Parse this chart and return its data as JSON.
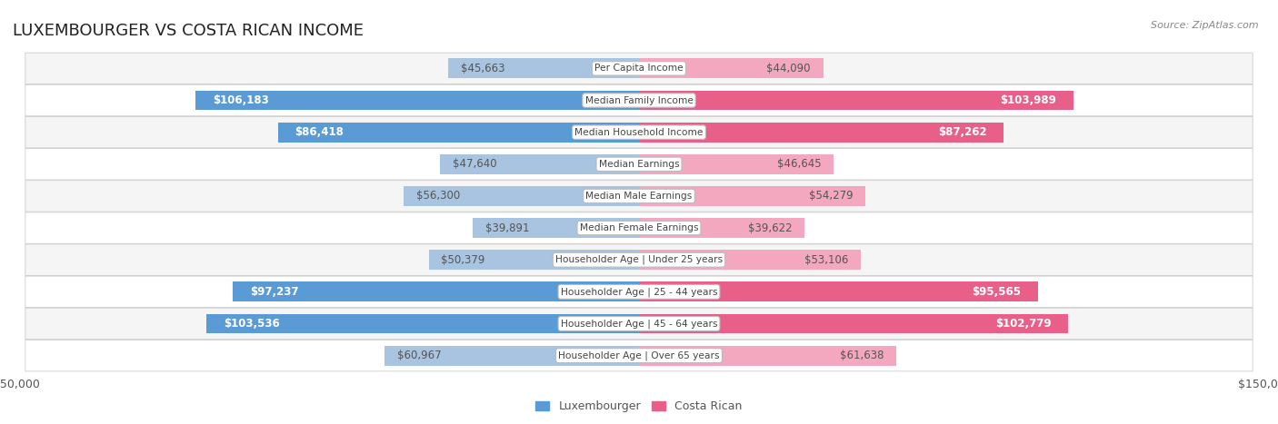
{
  "title": "LUXEMBOURGER VS COSTA RICAN INCOME",
  "source": "Source: ZipAtlas.com",
  "categories": [
    "Per Capita Income",
    "Median Family Income",
    "Median Household Income",
    "Median Earnings",
    "Median Male Earnings",
    "Median Female Earnings",
    "Householder Age | Under 25 years",
    "Householder Age | 25 - 44 years",
    "Householder Age | 45 - 64 years",
    "Householder Age | Over 65 years"
  ],
  "luxembourger_values": [
    45663,
    106183,
    86418,
    47640,
    56300,
    39891,
    50379,
    97237,
    103536,
    60967
  ],
  "costa_rican_values": [
    44090,
    103989,
    87262,
    46645,
    54279,
    39622,
    53106,
    95565,
    102779,
    61638
  ],
  "luxembourger_labels": [
    "$45,663",
    "$106,183",
    "$86,418",
    "$47,640",
    "$56,300",
    "$39,891",
    "$50,379",
    "$97,237",
    "$103,536",
    "$60,967"
  ],
  "costa_rican_labels": [
    "$44,090",
    "$103,989",
    "$87,262",
    "$46,645",
    "$54,279",
    "$39,622",
    "$53,106",
    "$95,565",
    "$102,779",
    "$61,638"
  ],
  "max_value": 150000,
  "lux_color_light": "#a8c4e0",
  "lux_color_dark": "#5b9bd5",
  "costa_color_light": "#f4a8c0",
  "costa_color_dark": "#e8608a",
  "label_threshold": 80000,
  "bg_color": "#ffffff",
  "row_bg_even": "#f5f5f5",
  "row_bg_odd": "#ffffff",
  "title_fontsize": 13,
  "label_fontsize": 8.5,
  "category_fontsize": 8,
  "bar_height": 0.62
}
